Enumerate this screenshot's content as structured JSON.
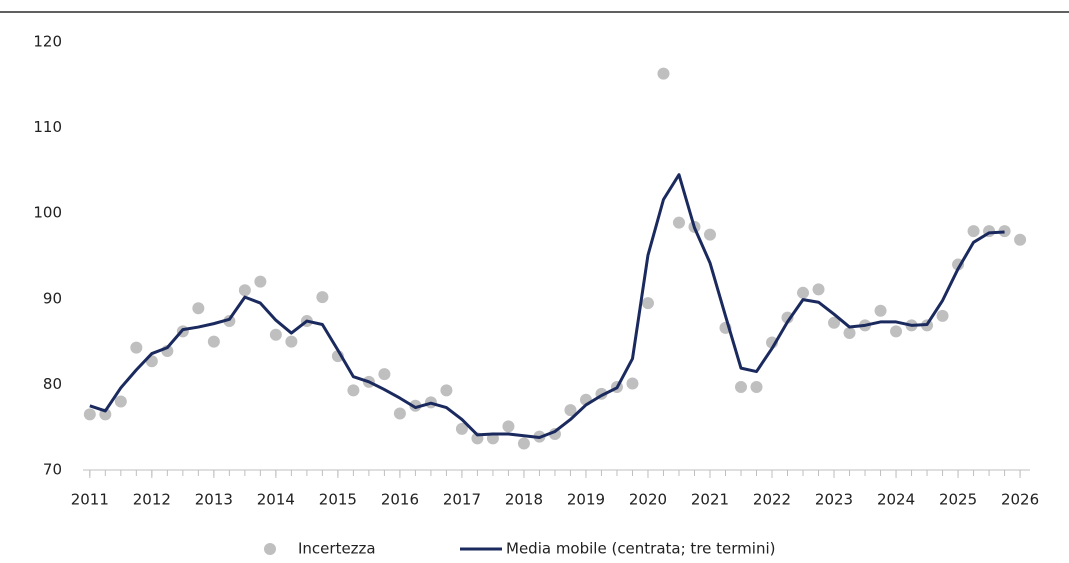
{
  "chart_data": {
    "type": "line",
    "x": [
      2011,
      2011.25,
      2011.5,
      2011.75,
      2012,
      2012.25,
      2012.5,
      2012.75,
      2013,
      2013.25,
      2013.5,
      2013.75,
      2014,
      2014.25,
      2014.5,
      2014.75,
      2015,
      2015.25,
      2015.5,
      2015.75,
      2016,
      2016.25,
      2016.5,
      2016.75,
      2017,
      2017.25,
      2017.5,
      2017.75,
      2018,
      2018.25,
      2018.5,
      2018.75,
      2019,
      2019.25,
      2019.5,
      2019.75,
      2020,
      2020.25,
      2020.5,
      2020.75,
      2021,
      2021.25,
      2021.5,
      2021.75,
      2022,
      2022.25,
      2022.5,
      2022.75,
      2023,
      2023.25,
      2023.5,
      2023.75,
      2024,
      2024.25,
      2024.5,
      2024.75,
      2025,
      2025.25,
      2025.5,
      2025.75,
      2026
    ],
    "series": [
      {
        "name": "Incertezza",
        "kind": "scatter",
        "color": "#bfbfbf",
        "values": [
          76.5,
          76.5,
          78,
          84.3,
          82.7,
          83.9,
          86.2,
          88.9,
          85,
          87.4,
          91,
          92,
          85.8,
          85,
          87.4,
          90.2,
          83.3,
          79.3,
          80.3,
          81.2,
          76.6,
          77.5,
          77.9,
          79.3,
          74.8,
          73.7,
          73.7,
          75.1,
          73.1,
          73.9,
          74.2,
          77,
          78.2,
          78.9,
          79.7,
          80.1,
          89.5,
          116.3,
          98.9,
          98.4,
          97.5,
          86.6,
          79.7,
          79.7,
          84.9,
          87.8,
          90.7,
          91.1,
          87.2,
          86,
          86.9,
          88.6,
          86.2,
          86.9,
          86.9,
          88,
          94,
          97.9,
          97.9,
          97.9,
          96.9
        ]
      },
      {
        "name": "Media mobile (centrata; tre termini)",
        "kind": "line",
        "color": "#1b2a5e",
        "values": [
          77.5,
          76.9,
          79.6,
          81.7,
          83.6,
          84.3,
          86.4,
          86.7,
          87.1,
          87.6,
          90.2,
          89.5,
          87.5,
          86,
          87.4,
          87,
          84,
          80.9,
          80.3,
          79.4,
          78.4,
          77.3,
          77.8,
          77.3,
          75.9,
          74.1,
          74.2,
          74.2,
          74,
          73.8,
          74.5,
          75.9,
          77.6,
          78.7,
          79.6,
          83,
          95.1,
          101.6,
          104.5,
          98.3,
          94.2,
          88,
          81.9,
          81.5,
          84.2,
          87.3,
          89.9,
          89.6,
          88.2,
          86.7,
          86.9,
          87.3,
          87.3,
          86.9,
          87,
          89.8,
          93.5,
          96.6,
          97.7,
          97.8,
          null
        ]
      }
    ],
    "xlim": [
      2010.89,
      2026.16
    ],
    "xticks": [
      2011,
      2012,
      2013,
      2014,
      2015,
      2016,
      2017,
      2018,
      2019,
      2020,
      2021,
      2022,
      2023,
      2024,
      2025,
      2026
    ],
    "ylim": [
      70,
      120
    ],
    "yticks": [
      70,
      80,
      90,
      100,
      110,
      120
    ],
    "grid": false,
    "legend": "bottom"
  }
}
